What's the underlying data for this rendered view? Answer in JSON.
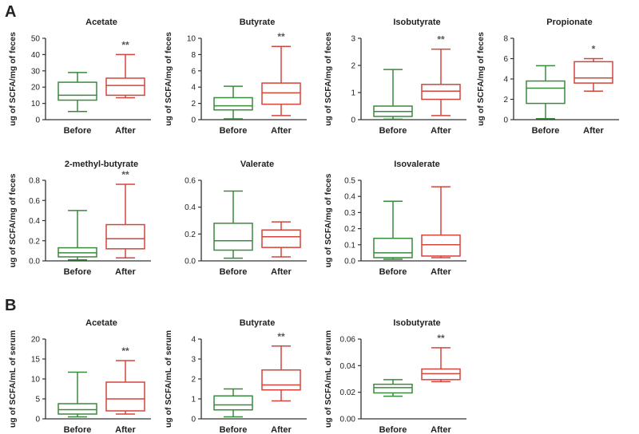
{
  "panels": [
    {
      "letter": "A",
      "y_label": "ug of SCFA/mg of feces"
    },
    {
      "letter": "B",
      "y_label": "ug of SCFA/mL of serum"
    }
  ],
  "colors": {
    "before": "#3a8a3c",
    "after": "#d2453a",
    "axis": "#333333",
    "text": "#222222"
  },
  "chart_data": [
    {
      "type": "box",
      "panel": "A",
      "title": "Acetate",
      "ylabel": "ug of SCFA/mg of feces",
      "categories": [
        "Before",
        "After"
      ],
      "ylim": [
        0,
        50
      ],
      "ticks": [
        "0",
        "10",
        "20",
        "30",
        "40",
        "50"
      ],
      "boxes": [
        {
          "group": "Before",
          "min": 5,
          "q1": 12,
          "median": 15,
          "q3": 23,
          "max": 29
        },
        {
          "group": "After",
          "min": 13.5,
          "q1": 15,
          "median": 21,
          "q3": 25.5,
          "max": 40
        }
      ],
      "significance": "**"
    },
    {
      "type": "box",
      "panel": "A",
      "title": "Butyrate",
      "ylabel": "ug of SCFA/mg of feces",
      "categories": [
        "Before",
        "After"
      ],
      "ylim": [
        0,
        10
      ],
      "ticks": [
        "0",
        "2",
        "4",
        "6",
        "8",
        "10"
      ],
      "boxes": [
        {
          "group": "Before",
          "min": 0.1,
          "q1": 1.2,
          "median": 1.7,
          "q3": 2.7,
          "max": 4.1
        },
        {
          "group": "After",
          "min": 0.5,
          "q1": 1.9,
          "median": 3.3,
          "q3": 4.5,
          "max": 9
        }
      ],
      "significance": "**"
    },
    {
      "type": "box",
      "panel": "A",
      "title": "Isobutyrate",
      "ylabel": "ug of SCFA/mg of feces",
      "categories": [
        "Before",
        "After"
      ],
      "ylim": [
        0,
        3
      ],
      "ticks": [
        "0",
        "1",
        "2",
        "3"
      ],
      "boxes": [
        {
          "group": "Before",
          "min": 0.02,
          "q1": 0.12,
          "median": 0.3,
          "q3": 0.5,
          "max": 1.85
        },
        {
          "group": "After",
          "min": 0.15,
          "q1": 0.75,
          "median": 1.05,
          "q3": 1.3,
          "max": 2.6
        }
      ],
      "significance": "**"
    },
    {
      "type": "box",
      "panel": "A",
      "title": "Propionate",
      "ylabel": "ug of SCFA/mg of feces",
      "categories": [
        "Before",
        "After"
      ],
      "ylim": [
        0,
        8
      ],
      "ticks": [
        "0",
        "2",
        "4",
        "6",
        "8"
      ],
      "boxes": [
        {
          "group": "Before",
          "min": 0.1,
          "q1": 1.6,
          "median": 3.1,
          "q3": 3.8,
          "max": 5.3
        },
        {
          "group": "After",
          "min": 2.8,
          "q1": 3.6,
          "median": 4.1,
          "q3": 5.7,
          "max": 6
        }
      ],
      "significance": "*"
    },
    {
      "type": "box",
      "panel": "A",
      "title": "2-methyl-butyrate",
      "ylabel": "ug of SCFA/mg of feces",
      "categories": [
        "Before",
        "After"
      ],
      "ylim": [
        0,
        0.8
      ],
      "ticks": [
        "0.0",
        "0.2",
        "0.4",
        "0.6",
        "0.8"
      ],
      "boxes": [
        {
          "group": "Before",
          "min": 0.01,
          "q1": 0.04,
          "median": 0.08,
          "q3": 0.13,
          "max": 0.5
        },
        {
          "group": "After",
          "min": 0.03,
          "q1": 0.12,
          "median": 0.22,
          "q3": 0.36,
          "max": 0.76
        }
      ],
      "significance": "**"
    },
    {
      "type": "box",
      "panel": "A",
      "title": "Valerate",
      "ylabel": "",
      "categories": [
        "Before",
        "After"
      ],
      "ylim": [
        0,
        0.6
      ],
      "ticks": [
        "0.0",
        "0.2",
        "0.4",
        "0.6"
      ],
      "boxes": [
        {
          "group": "Before",
          "min": 0.02,
          "q1": 0.08,
          "median": 0.15,
          "q3": 0.28,
          "max": 0.52
        },
        {
          "group": "After",
          "min": 0.03,
          "q1": 0.1,
          "median": 0.18,
          "q3": 0.23,
          "max": 0.29
        }
      ],
      "significance": ""
    },
    {
      "type": "box",
      "panel": "A",
      "title": "Isovalerate",
      "ylabel": "ug of SCFA/mg of feces",
      "categories": [
        "Before",
        "After"
      ],
      "ylim": [
        0,
        0.5
      ],
      "ticks": [
        "0.0",
        "0.1",
        "0.2",
        "0.3",
        "0.4",
        "0.5"
      ],
      "boxes": [
        {
          "group": "Before",
          "min": 0.01,
          "q1": 0.02,
          "median": 0.05,
          "q3": 0.14,
          "max": 0.37
        },
        {
          "group": "After",
          "min": 0.02,
          "q1": 0.03,
          "median": 0.1,
          "q3": 0.16,
          "max": 0.46
        }
      ],
      "significance": ""
    },
    {
      "type": "box",
      "panel": "B",
      "title": "Acetate",
      "ylabel": "ug of SCFA/mL of serum",
      "categories": [
        "Before",
        "After"
      ],
      "ylim": [
        0,
        20
      ],
      "ticks": [
        "0",
        "5",
        "10",
        "15",
        "20"
      ],
      "boxes": [
        {
          "group": "Before",
          "min": 0.5,
          "q1": 1.2,
          "median": 2.3,
          "q3": 3.8,
          "max": 11.7
        },
        {
          "group": "After",
          "min": 1.2,
          "q1": 2,
          "median": 5,
          "q3": 9.2,
          "max": 14.6
        }
      ],
      "significance": "**"
    },
    {
      "type": "box",
      "panel": "B",
      "title": "Butyrate",
      "ylabel": "ug of SCFA/mL of serum",
      "categories": [
        "Before",
        "After"
      ],
      "ylim": [
        0,
        4
      ],
      "ticks": [
        "0",
        "1",
        "2",
        "3",
        "4"
      ],
      "boxes": [
        {
          "group": "Before",
          "min": 0.1,
          "q1": 0.45,
          "median": 0.7,
          "q3": 1.15,
          "max": 1.5
        },
        {
          "group": "After",
          "min": 0.9,
          "q1": 1.45,
          "median": 1.7,
          "q3": 2.45,
          "max": 3.65
        }
      ],
      "significance": "**"
    },
    {
      "type": "box",
      "panel": "B",
      "title": "Isobutyrate",
      "ylabel": "ug of SCFA/mL of serum",
      "categories": [
        "Before",
        "After"
      ],
      "ylim": [
        0,
        0.06
      ],
      "ticks": [
        "0.00",
        "0.02",
        "0.04",
        "0.06"
      ],
      "boxes": [
        {
          "group": "Before",
          "min": 0.017,
          "q1": 0.0195,
          "median": 0.0235,
          "q3": 0.026,
          "max": 0.0295
        },
        {
          "group": "After",
          "min": 0.028,
          "q1": 0.0295,
          "median": 0.034,
          "q3": 0.0375,
          "max": 0.0535
        }
      ],
      "significance": "**"
    }
  ]
}
